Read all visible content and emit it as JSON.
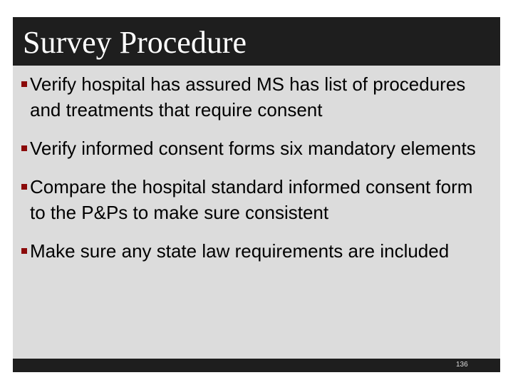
{
  "slide": {
    "title": "Survey Procedure",
    "bullets": [
      "Verify hospital has assured MS has list of procedures and treatments that require consent",
      "Verify informed consent forms six mandatory elements",
      "Compare the hospital standard informed consent form to the P&Ps to make sure consistent",
      "Make sure any state law requirements are included"
    ],
    "page_number": "136",
    "colors": {
      "title_bar": "#1e1e1e",
      "body_bg": "#dcdcdc",
      "bullet": "#8b0a0a"
    }
  }
}
